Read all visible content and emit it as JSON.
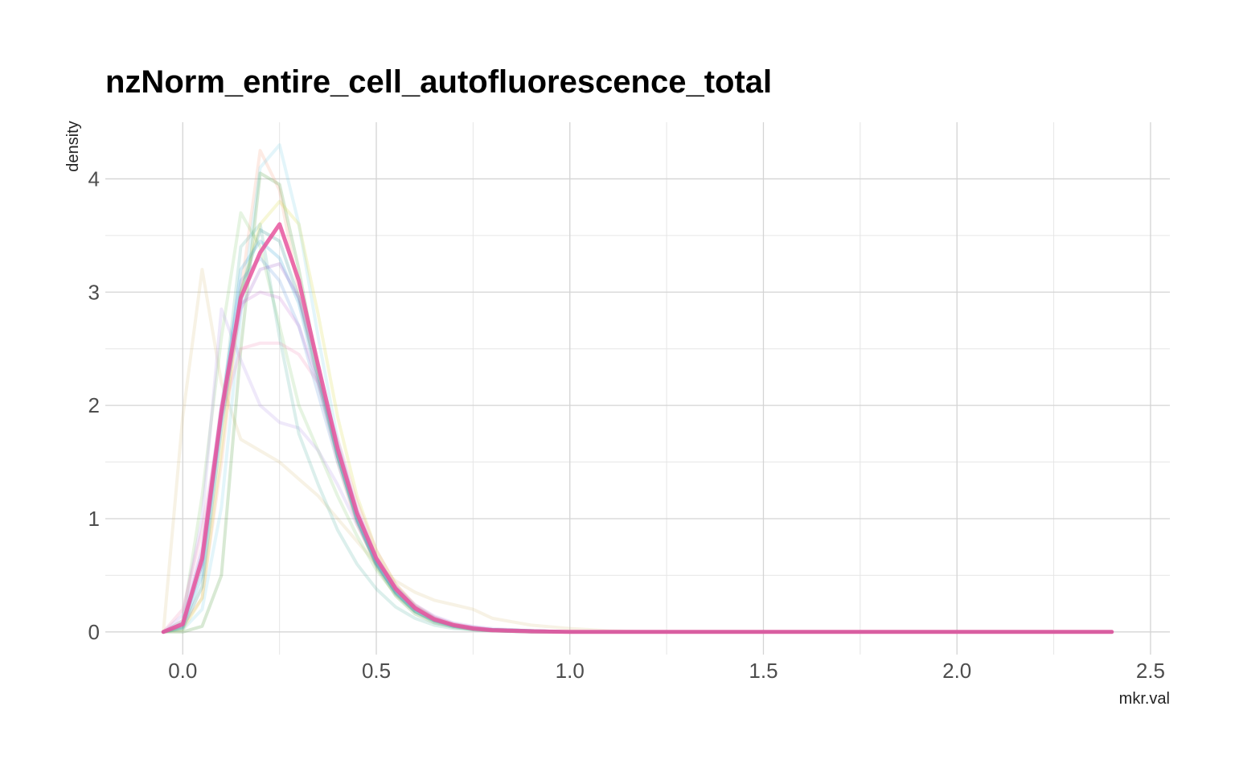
{
  "chart_data": {
    "type": "line",
    "title": "nzNorm_entire_cell_autofluorescence_total",
    "xlabel": "mkr.val",
    "ylabel": "density",
    "xlim": [
      -0.2,
      2.55
    ],
    "ylim": [
      -0.2,
      4.5
    ],
    "xticks": [
      0.0,
      0.5,
      1.0,
      1.5,
      2.0,
      2.5
    ],
    "xtick_labels": [
      "0.0",
      "0.5",
      "1.0",
      "1.5",
      "2.0",
      "2.5"
    ],
    "yticks": [
      0,
      1,
      2,
      3,
      4
    ],
    "ytick_labels": [
      "0",
      "1",
      "2",
      "3",
      "4"
    ],
    "grid": true,
    "legend": "none",
    "x": [
      -0.05,
      0.0,
      0.05,
      0.1,
      0.15,
      0.2,
      0.25,
      0.3,
      0.35,
      0.4,
      0.45,
      0.5,
      0.55,
      0.6,
      0.65,
      0.7,
      0.75,
      0.8,
      0.9,
      1.0,
      1.1,
      1.2,
      1.4,
      1.6,
      1.8,
      2.0,
      2.2,
      2.4
    ],
    "series": [
      {
        "color": "#d9c68a",
        "values": [
          0.0,
          1.9,
          3.2,
          2.2,
          1.7,
          1.6,
          1.5,
          1.35,
          1.2,
          1.0,
          0.8,
          0.6,
          0.45,
          0.35,
          0.28,
          0.24,
          0.2,
          0.12,
          0.06,
          0.03,
          0.01,
          0.0,
          0.0,
          0.0,
          0.0,
          0.0,
          0.0,
          0.0
        ]
      },
      {
        "color": "#f4a582",
        "values": [
          0.0,
          0.05,
          0.3,
          1.5,
          3.0,
          4.25,
          3.9,
          3.0,
          2.2,
          1.5,
          0.95,
          0.6,
          0.36,
          0.2,
          0.12,
          0.07,
          0.04,
          0.02,
          0.01,
          0.0,
          0.0,
          0.0,
          0.0,
          0.0,
          0.0,
          0.0,
          0.0,
          0.0
        ]
      },
      {
        "color": "#7fd3e8",
        "values": [
          0.0,
          0.02,
          0.2,
          1.1,
          2.8,
          4.1,
          4.3,
          3.6,
          2.6,
          1.7,
          1.05,
          0.62,
          0.35,
          0.18,
          0.1,
          0.05,
          0.03,
          0.02,
          0.01,
          0.0,
          0.0,
          0.0,
          0.0,
          0.0,
          0.0,
          0.0,
          0.0,
          0.0
        ]
      },
      {
        "color": "#8fcf7a",
        "values": [
          0.0,
          0.1,
          1.2,
          2.6,
          3.7,
          3.4,
          2.7,
          2.0,
          1.6,
          1.2,
          0.85,
          0.55,
          0.33,
          0.18,
          0.1,
          0.06,
          0.03,
          0.02,
          0.01,
          0.0,
          0.0,
          0.0,
          0.0,
          0.0,
          0.0,
          0.0,
          0.0,
          0.0
        ]
      },
      {
        "color": "#4f9d3a",
        "values": [
          0.0,
          0.0,
          0.05,
          0.5,
          2.5,
          4.05,
          3.95,
          3.2,
          2.3,
          1.55,
          0.98,
          0.58,
          0.32,
          0.16,
          0.08,
          0.04,
          0.02,
          0.01,
          0.0,
          0.0,
          0.0,
          0.0,
          0.0,
          0.0,
          0.0,
          0.0,
          0.0,
          0.0
        ]
      },
      {
        "color": "#b49be8",
        "values": [
          0.0,
          0.15,
          1.0,
          2.85,
          2.4,
          2.0,
          1.85,
          1.8,
          1.6,
          1.3,
          0.95,
          0.62,
          0.4,
          0.24,
          0.14,
          0.08,
          0.05,
          0.03,
          0.01,
          0.0,
          0.0,
          0.0,
          0.0,
          0.0,
          0.0,
          0.0,
          0.0,
          0.0
        ]
      },
      {
        "color": "#f08bb4",
        "values": [
          0.0,
          0.2,
          0.9,
          1.9,
          2.5,
          2.55,
          2.55,
          2.45,
          2.2,
          1.7,
          1.15,
          0.72,
          0.42,
          0.24,
          0.13,
          0.07,
          0.04,
          0.02,
          0.01,
          0.0,
          0.0,
          0.0,
          0.0,
          0.0,
          0.0,
          0.0,
          0.0,
          0.0
        ]
      },
      {
        "color": "#5fb8a8",
        "values": [
          0.0,
          0.05,
          0.6,
          1.9,
          3.4,
          3.6,
          2.6,
          1.75,
          1.3,
          0.9,
          0.6,
          0.38,
          0.22,
          0.12,
          0.06,
          0.03,
          0.02,
          0.01,
          0.0,
          0.0,
          0.0,
          0.0,
          0.0,
          0.0,
          0.0,
          0.0,
          0.0,
          0.0
        ]
      },
      {
        "color": "#d9d94a",
        "values": [
          0.0,
          0.02,
          0.3,
          1.6,
          3.0,
          3.6,
          3.8,
          3.6,
          2.8,
          1.9,
          1.2,
          0.72,
          0.42,
          0.23,
          0.12,
          0.06,
          0.03,
          0.02,
          0.01,
          0.0,
          0.0,
          0.0,
          0.0,
          0.0,
          0.0,
          0.0,
          0.0,
          0.0
        ]
      },
      {
        "color": "#6b9ce0",
        "values": [
          0.0,
          0.08,
          0.7,
          2.0,
          3.1,
          3.3,
          3.1,
          2.7,
          2.1,
          1.5,
          0.98,
          0.6,
          0.35,
          0.2,
          0.11,
          0.06,
          0.03,
          0.02,
          0.01,
          0.0,
          0.0,
          0.0,
          0.0,
          0.0,
          0.0,
          0.0,
          0.0,
          0.0
        ]
      },
      {
        "color": "#c77dd4",
        "values": [
          0.0,
          0.1,
          0.75,
          2.0,
          2.9,
          3.0,
          2.95,
          2.7,
          2.2,
          1.6,
          1.05,
          0.66,
          0.4,
          0.23,
          0.13,
          0.07,
          0.04,
          0.02,
          0.01,
          0.0,
          0.0,
          0.0,
          0.0,
          0.0,
          0.0,
          0.0,
          0.0,
          0.0
        ]
      },
      {
        "color": "#35a3d6",
        "values": [
          0.0,
          0.04,
          0.5,
          1.9,
          3.2,
          3.45,
          3.3,
          2.9,
          2.2,
          1.55,
          1.0,
          0.6,
          0.35,
          0.19,
          0.1,
          0.05,
          0.03,
          0.02,
          0.01,
          0.0,
          0.0,
          0.0,
          0.0,
          0.0,
          0.0,
          0.0,
          0.0,
          0.0
        ]
      },
      {
        "color": "#2e8b8b",
        "values": [
          0.0,
          0.03,
          0.4,
          1.8,
          3.0,
          3.55,
          3.45,
          2.95,
          2.25,
          1.55,
          1.0,
          0.6,
          0.34,
          0.18,
          0.09,
          0.05,
          0.02,
          0.01,
          0.0,
          0.0,
          0.0,
          0.0,
          0.0,
          0.0,
          0.0,
          0.0,
          0.0,
          0.0
        ]
      },
      {
        "color": "#9a60c8",
        "values": [
          0.0,
          0.06,
          0.6,
          1.9,
          2.85,
          3.2,
          3.25,
          2.95,
          2.35,
          1.65,
          1.08,
          0.66,
          0.39,
          0.22,
          0.12,
          0.06,
          0.04,
          0.02,
          0.01,
          0.0,
          0.0,
          0.0,
          0.0,
          0.0,
          0.0,
          0.0,
          0.0,
          0.0
        ]
      },
      {
        "color": "#e8559e",
        "values": [
          0.0,
          0.07,
          0.65,
          1.95,
          2.95,
          3.35,
          3.6,
          3.1,
          2.35,
          1.62,
          1.05,
          0.65,
          0.38,
          0.21,
          0.11,
          0.06,
          0.03,
          0.015,
          0.005,
          0.0,
          0.0,
          0.0,
          0.0,
          0.0,
          0.0,
          0.0,
          0.0,
          0.0
        ]
      }
    ]
  }
}
